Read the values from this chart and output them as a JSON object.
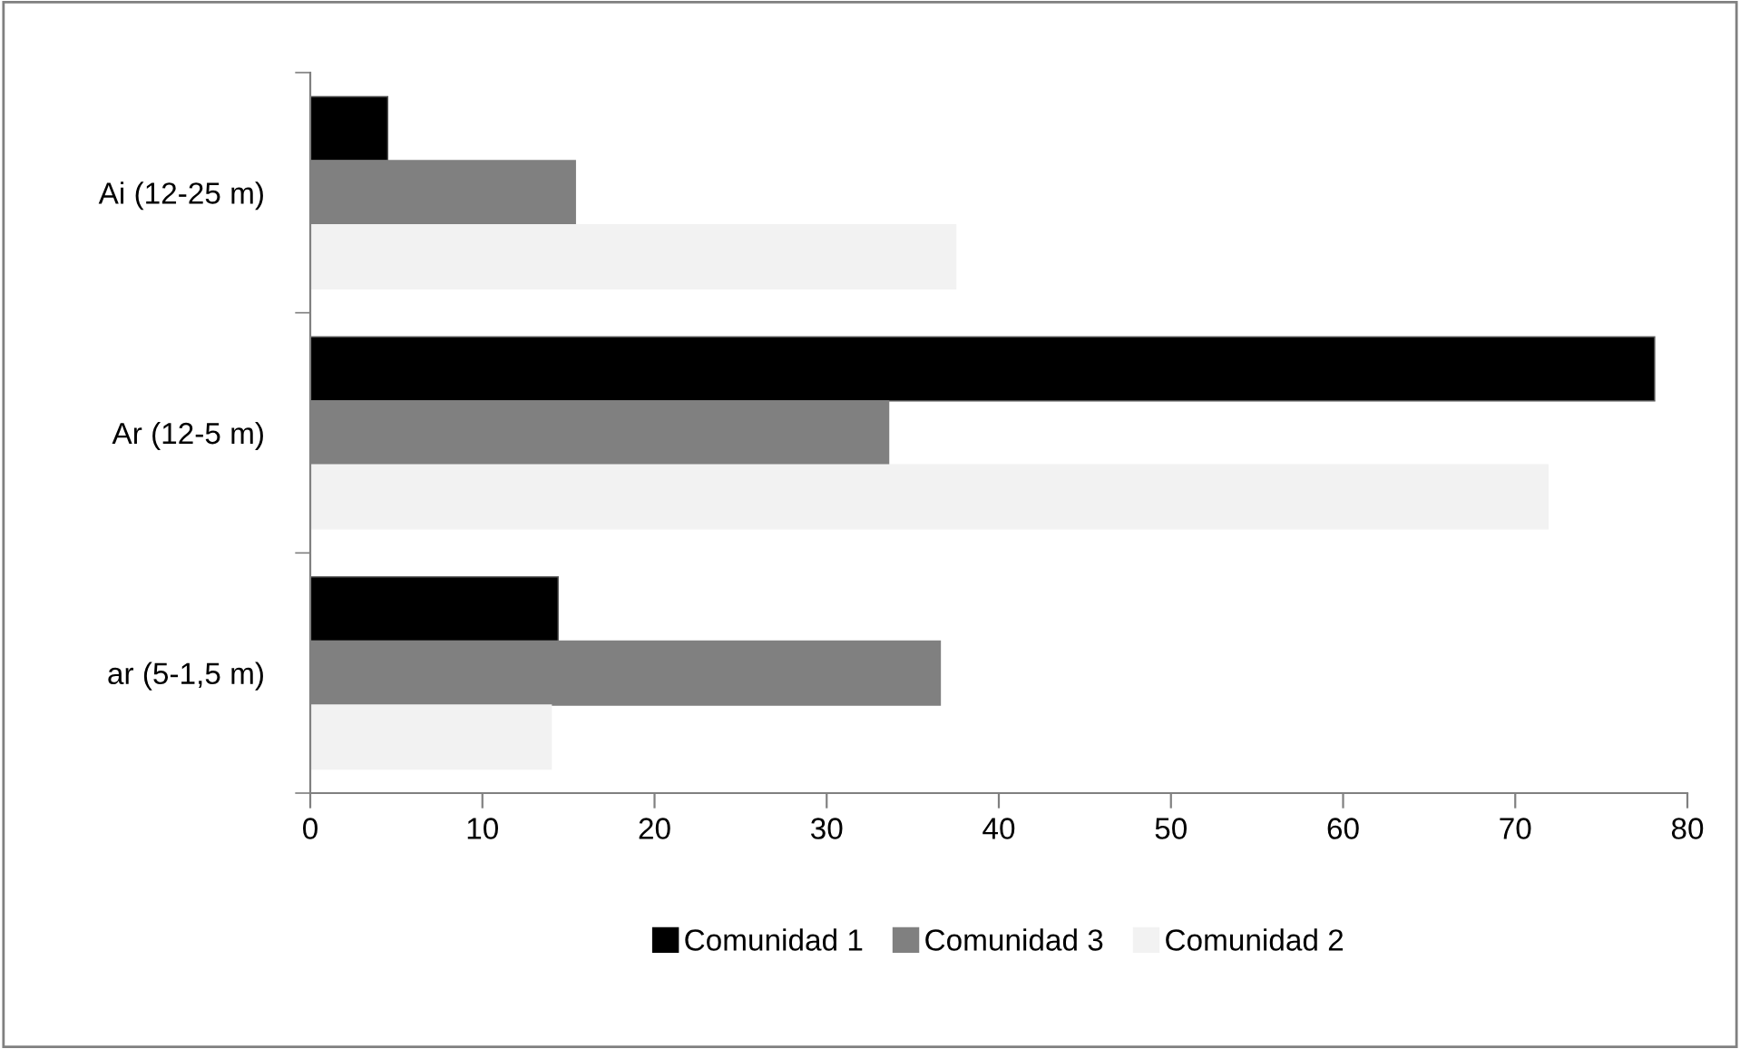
{
  "chart_data": {
    "type": "bar",
    "orientation": "horizontal",
    "categories": [
      "Ai (12-25 m)",
      "Ar (12-5 m)",
      "ar (5-1,5 m)"
    ],
    "series": [
      {
        "name": "Comunidad 1",
        "color": "#000000",
        "values": [
          4.5,
          78.1,
          14.4
        ]
      },
      {
        "name": "Comunidad 3",
        "color": "#808080",
        "values": [
          15.4,
          33.6,
          36.6
        ]
      },
      {
        "name": "Comunidad 2",
        "color": "#f2f2f2",
        "values": [
          37.5,
          71.9,
          14.0
        ]
      }
    ],
    "xlim": [
      0,
      80
    ],
    "xticks": [
      0,
      10,
      20,
      30,
      40,
      50,
      60,
      70,
      80
    ],
    "grid": false,
    "legend": "bottom"
  }
}
